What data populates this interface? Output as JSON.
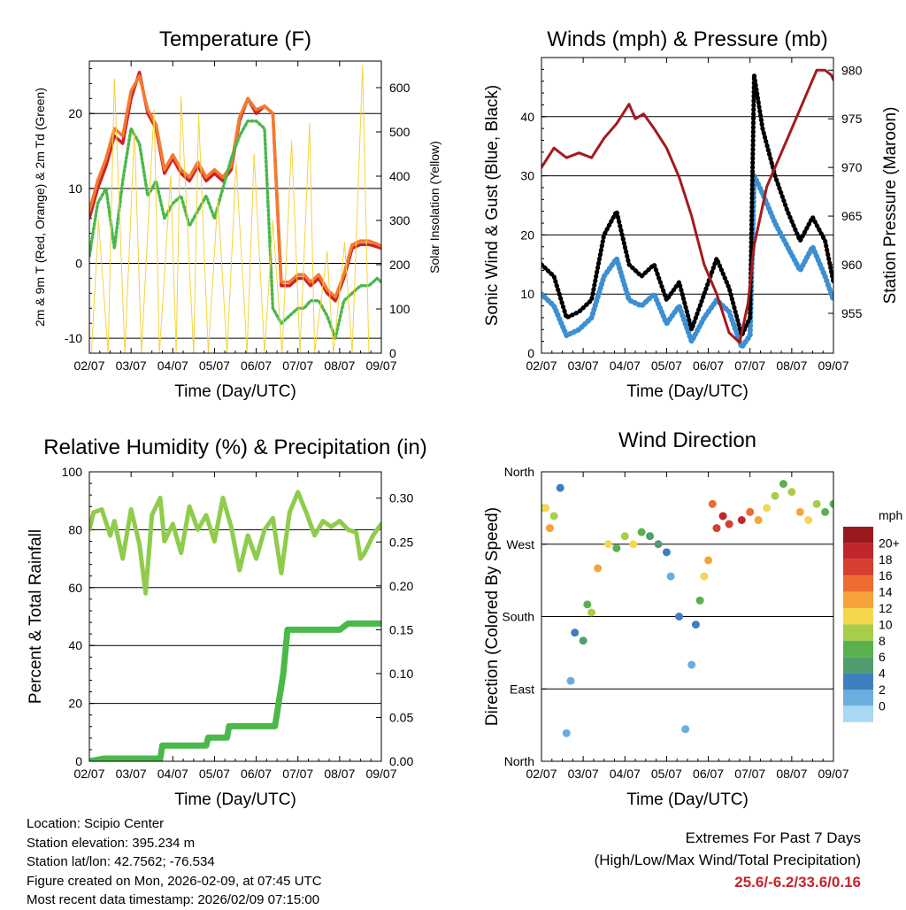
{
  "chart_data": [
    {
      "type": "line",
      "title": "Temperature (F)",
      "xlabel": "Time (Day/UTC)",
      "ylabel": "2m & 9m T (Red, Orange) & 2m Td (Green)",
      "ylabel_right": "Solar Insolation (Yellow)",
      "x_ticks": [
        "02/07",
        "03/07",
        "04/07",
        "05/07",
        "06/07",
        "07/07",
        "08/07",
        "09/07"
      ],
      "ylim": [
        -12,
        27
      ],
      "yticks": [
        -10,
        0,
        10,
        20
      ],
      "ylim_right": [
        0,
        660
      ],
      "yticks_right": [
        0,
        100,
        200,
        300,
        400,
        500,
        600
      ],
      "grid": true,
      "series": [
        {
          "name": "2m T",
          "color": "#cc2229",
          "x": [
            0,
            0.2,
            0.4,
            0.6,
            0.8,
            1.0,
            1.2,
            1.4,
            1.6,
            1.8,
            2.0,
            2.2,
            2.4,
            2.6,
            2.8,
            3.0,
            3.2,
            3.4,
            3.6,
            3.8,
            4.0,
            4.2,
            4.4,
            4.6,
            4.8,
            5.0,
            5.15,
            5.3,
            5.5,
            5.7,
            5.9,
            6.1,
            6.3,
            6.5,
            6.7,
            6.9,
            7.0
          ],
          "values": [
            6,
            10,
            13,
            17,
            16,
            22,
            25.5,
            20,
            18,
            12,
            14,
            12,
            11,
            13,
            11,
            12,
            11,
            12.5,
            19,
            22,
            20,
            21,
            20,
            -3,
            -3,
            -2,
            -2,
            -3,
            -2,
            -4,
            -5,
            -2,
            2,
            2.5,
            2.5,
            2.2,
            2
          ]
        },
        {
          "name": "9m T",
          "color": "#f47a2e",
          "x": [
            0,
            0.2,
            0.4,
            0.6,
            0.8,
            1.0,
            1.2,
            1.4,
            1.6,
            1.8,
            2.0,
            2.2,
            2.4,
            2.6,
            2.8,
            3.0,
            3.2,
            3.4,
            3.6,
            3.8,
            4.0,
            4.2,
            4.4,
            4.6,
            4.8,
            5.0,
            5.15,
            5.3,
            5.5,
            5.7,
            5.9,
            6.1,
            6.3,
            6.5,
            6.7,
            6.9,
            7.0
          ],
          "values": [
            7,
            11,
            14,
            18,
            17,
            23,
            25,
            20.5,
            18.5,
            12.5,
            14.5,
            12.5,
            11.5,
            13.5,
            11.5,
            12.5,
            11.5,
            13,
            19.5,
            22,
            20.5,
            21,
            20,
            -2.5,
            -2.5,
            -1.5,
            -1.5,
            -2.5,
            -1.5,
            -3.5,
            -4.5,
            -1.5,
            2.5,
            3,
            3,
            2.6,
            2.3
          ]
        },
        {
          "name": "2m Td",
          "color": "#4bb84a",
          "x": [
            0,
            0.2,
            0.4,
            0.6,
            0.8,
            1.0,
            1.2,
            1.4,
            1.6,
            1.8,
            2.0,
            2.2,
            2.4,
            2.6,
            2.8,
            3.0,
            3.2,
            3.4,
            3.6,
            3.8,
            4.0,
            4.2,
            4.4,
            4.6,
            4.8,
            5.0,
            5.15,
            5.3,
            5.5,
            5.7,
            5.9,
            6.1,
            6.3,
            6.5,
            6.7,
            6.9,
            7.0
          ],
          "values": [
            1,
            8,
            10,
            2,
            11,
            18,
            16,
            9,
            11,
            6,
            8,
            9,
            5,
            7,
            9,
            6,
            10,
            14,
            17,
            19,
            19,
            18,
            -6,
            -8,
            -7,
            -6,
            -6,
            -5,
            -5,
            -7,
            -10,
            -5,
            -4,
            -3,
            -3,
            -2,
            -2.5
          ]
        },
        {
          "name": "Solar Insolation",
          "color": "#f5d23c",
          "axis": "right",
          "x": [
            0.05,
            0.22,
            0.45,
            0.6,
            0.85,
            1.08,
            1.25,
            1.55,
            1.68,
            1.95,
            2.08,
            2.2,
            2.5,
            2.62,
            2.85,
            3.08,
            3.3,
            3.52,
            3.78,
            3.95,
            4.2,
            4.4,
            4.62,
            4.85,
            5.05,
            5.28,
            5.4,
            5.7,
            5.85,
            6.12,
            6.3,
            6.55,
            6.7,
            6.95
          ],
          "values": [
            0,
            300,
            0,
            620,
            0,
            500,
            0,
            550,
            0,
            400,
            0,
            580,
            0,
            540,
            0,
            350,
            0,
            430,
            0,
            450,
            0,
            300,
            0,
            480,
            0,
            520,
            0,
            230,
            0,
            250,
            0,
            650,
            0,
            0
          ]
        }
      ]
    },
    {
      "type": "scatter",
      "title": "Winds (mph) & Pressure (mb)",
      "xlabel": "Time (Day/UTC)",
      "ylabel": "Sonic Wind & Gust (Blue, Black)",
      "ylabel_right": "Station Pressure (Maroon)",
      "x_ticks": [
        "02/07",
        "03/07",
        "04/07",
        "05/07",
        "06/07",
        "07/07",
        "08/07",
        "09/07"
      ],
      "ylim": [
        0,
        50
      ],
      "yticks": [
        0,
        10,
        20,
        30,
        40
      ],
      "ylim_right": [
        950.9,
        981.3
      ],
      "yticks_right": [
        955,
        960,
        965,
        970,
        975,
        980
      ],
      "grid": true,
      "series": [
        {
          "name": "Wind",
          "color": "#3d8fd1",
          "x": [
            0,
            0.3,
            0.6,
            0.9,
            1.2,
            1.5,
            1.8,
            2.1,
            2.4,
            2.7,
            3.0,
            3.3,
            3.6,
            3.9,
            4.2,
            4.5,
            4.8,
            5.0,
            5.1,
            5.3,
            5.6,
            5.9,
            6.2,
            6.5,
            6.8,
            7.0
          ],
          "values": [
            10,
            8,
            3,
            4,
            6,
            13,
            16,
            9,
            8,
            10,
            5,
            8,
            2,
            6,
            9,
            7,
            1,
            3,
            30,
            27,
            22,
            18,
            14,
            18,
            13,
            9
          ]
        },
        {
          "name": "Gust",
          "color": "#000000",
          "x": [
            0,
            0.3,
            0.6,
            0.9,
            1.2,
            1.5,
            1.8,
            2.1,
            2.4,
            2.7,
            3.0,
            3.3,
            3.6,
            3.9,
            4.2,
            4.5,
            4.8,
            5.0,
            5.1,
            5.3,
            5.6,
            5.9,
            6.2,
            6.5,
            6.8,
            7.0
          ],
          "values": [
            15,
            13,
            6,
            7,
            9,
            20,
            24,
            15,
            13,
            15,
            9,
            12,
            4,
            10,
            16,
            11,
            3,
            6,
            47,
            38,
            30,
            24,
            19,
            23,
            19,
            12
          ]
        },
        {
          "name": "Station Pressure",
          "color": "#a31a1f",
          "axis": "right",
          "x": [
            0,
            0.3,
            0.6,
            0.9,
            1.2,
            1.5,
            1.8,
            2.1,
            2.25,
            2.45,
            2.7,
            3.0,
            3.3,
            3.6,
            3.9,
            4.2,
            4.5,
            4.75,
            4.95,
            5.1,
            5.4,
            5.7,
            6.0,
            6.3,
            6.6,
            6.8,
            6.95,
            7.0
          ],
          "values": [
            970,
            972,
            971,
            971.5,
            971,
            973,
            974.5,
            976.5,
            975,
            975.5,
            974,
            972,
            969,
            965,
            960,
            957,
            953,
            952,
            956,
            962,
            968,
            971,
            974,
            977,
            980,
            980,
            979.5,
            979
          ]
        }
      ]
    },
    {
      "type": "line",
      "title": "Relative Humidity (%) & Precipitation (in)",
      "xlabel": "Time (Day/UTC)",
      "ylabel": "Percent & Total Rainfall",
      "x_ticks": [
        "02/07",
        "03/07",
        "04/07",
        "05/07",
        "06/07",
        "07/07",
        "08/07",
        "09/07"
      ],
      "ylim": [
        0,
        100
      ],
      "yticks": [
        0,
        20,
        40,
        60,
        80,
        100
      ],
      "ylim_right": [
        0,
        0.33
      ],
      "yticks_right": [
        0.0,
        0.05,
        0.1,
        0.15,
        0.2,
        0.25,
        0.3
      ],
      "grid": true,
      "series": [
        {
          "name": "Relative Humidity",
          "color": "#8fcc4b",
          "x": [
            0,
            0.1,
            0.3,
            0.5,
            0.6,
            0.8,
            1.0,
            1.2,
            1.35,
            1.5,
            1.7,
            1.8,
            2.0,
            2.2,
            2.4,
            2.6,
            2.8,
            3.0,
            3.2,
            3.4,
            3.6,
            3.8,
            4.0,
            4.2,
            4.4,
            4.6,
            4.8,
            5.0,
            5.2,
            5.4,
            5.6,
            5.8,
            6.0,
            6.2,
            6.4,
            6.5,
            6.6,
            6.8,
            7.0
          ],
          "values": [
            80,
            86,
            87,
            78,
            83,
            70,
            87,
            75,
            58,
            85,
            91,
            76,
            82,
            72,
            88,
            80,
            85,
            76,
            91,
            81,
            66,
            78,
            70,
            80,
            84,
            65,
            86,
            93,
            86,
            78,
            83,
            81,
            83,
            80,
            79,
            70,
            72,
            78,
            82
          ]
        },
        {
          "name": "Total Rainfall",
          "color": "#4bb84a",
          "axis": "right",
          "x": [
            0,
            0.35,
            1.7,
            1.75,
            2.8,
            2.85,
            3.3,
            3.35,
            4.45,
            4.55,
            4.65,
            4.75,
            5.0,
            5.4,
            6.0,
            6.2,
            7.0
          ],
          "values": [
            0,
            0.003,
            0.003,
            0.018,
            0.018,
            0.027,
            0.027,
            0.04,
            0.04,
            0.07,
            0.1,
            0.15,
            0.15,
            0.15,
            0.15,
            0.157,
            0.157
          ]
        }
      ]
    },
    {
      "type": "scatter",
      "title": "Wind Direction",
      "xlabel": "Time (Day/UTC)",
      "ylabel": "Direction (Colored By Speed)",
      "x_ticks": [
        "02/07",
        "03/07",
        "04/07",
        "05/07",
        "06/07",
        "07/07",
        "08/07",
        "09/07"
      ],
      "ylim": [
        0,
        360
      ],
      "ytick_labels": [
        "North",
        "East",
        "South",
        "West",
        "North"
      ],
      "ytick_values": [
        0,
        90,
        180,
        270,
        360
      ],
      "grid": true,
      "colorbar": {
        "title": "mph",
        "labels": [
          "20+",
          "18",
          "16",
          "14",
          "12",
          "10",
          "8",
          "6",
          "4",
          "2",
          "0"
        ],
        "colors": [
          "#991a1e",
          "#c0272d",
          "#d43f30",
          "#ef6a2f",
          "#f6a33a",
          "#f3d84e",
          "#a7ce4a",
          "#5bb04e",
          "#4f9d6e",
          "#3d7fbf",
          "#6aaee0",
          "#a9d8f2"
        ]
      },
      "points": {
        "x": [
          0,
          0.1,
          0.2,
          0.3,
          0.45,
          0.6,
          0.7,
          0.8,
          1.0,
          1.1,
          1.2,
          1.35,
          1.6,
          1.8,
          2.0,
          2.2,
          2.4,
          2.6,
          2.8,
          3.0,
          3.1,
          3.3,
          3.45,
          3.6,
          3.7,
          3.8,
          3.9,
          4.0,
          4.1,
          4.2,
          4.35,
          4.5,
          4.8,
          5.0,
          5.2,
          5.4,
          5.6,
          5.8,
          6.0,
          6.2,
          6.4,
          6.6,
          6.8,
          7.0
        ],
        "direction": [
          315,
          315,
          290,
          305,
          340,
          35,
          100,
          160,
          150,
          195,
          185,
          240,
          270,
          265,
          280,
          270,
          285,
          280,
          270,
          260,
          230,
          180,
          40,
          120,
          170,
          200,
          230,
          250,
          320,
          290,
          305,
          295,
          300,
          310,
          300,
          315,
          330,
          345,
          335,
          310,
          300,
          320,
          310,
          320
        ],
        "speed": [
          10,
          12,
          14,
          11,
          4,
          2,
          3,
          4,
          6,
          9,
          10,
          14,
          12,
          8,
          10,
          12,
          9,
          7,
          6,
          5,
          3,
          4,
          3,
          2,
          4,
          9,
          12,
          14,
          16,
          18,
          20,
          18,
          20,
          16,
          14,
          12,
          10,
          8,
          11,
          14,
          12,
          10,
          8,
          9
        ]
      }
    }
  ],
  "footer": {
    "location": "Location: Scipio Center",
    "elevation": "Station elevation: 395.234 m",
    "latlon": "Station lat/lon: 42.7562; -76.534",
    "created": "Figure created on Mon, 2026-02-09, at 07:45 UTC",
    "timestamp": "Most recent data timestamp: 2026/02/09 07:15:00"
  },
  "extremes": {
    "title": "Extremes For Past 7 Days",
    "subtitle": "(High/Low/Max Wind/Total Precipitation)",
    "values": "25.6/-6.2/33.6/0.16"
  }
}
